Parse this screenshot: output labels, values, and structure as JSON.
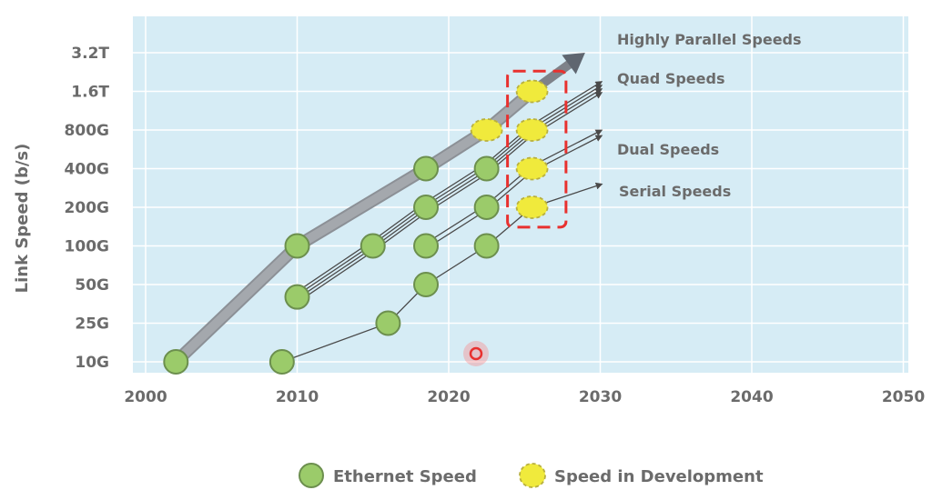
{
  "chart_data": {
    "type": "line",
    "ylabel": "Link Speed (b/s)",
    "xlabel": "",
    "xlim": [
      2000,
      2050
    ],
    "x_ticks": [
      2000,
      2010,
      2020,
      2030,
      2040,
      2050
    ],
    "y_scale": "log2",
    "y_ticks": [
      {
        "label": "10G",
        "value_gbps": 10
      },
      {
        "label": "25G",
        "value_gbps": 25
      },
      {
        "label": "50G",
        "value_gbps": 50
      },
      {
        "label": "100G",
        "value_gbps": 100
      },
      {
        "label": "200G",
        "value_gbps": 200
      },
      {
        "label": "400G",
        "value_gbps": 400
      },
      {
        "label": "800G",
        "value_gbps": 800
      },
      {
        "label": "1.6T",
        "value_gbps": 1600
      },
      {
        "label": "3.2T",
        "value_gbps": 3200
      }
    ],
    "grid": true,
    "series": [
      {
        "name": "Highly Parallel Speeds",
        "style": "thick-gray-arrow",
        "line": [
          [
            2002,
            10
          ],
          [
            2010,
            100
          ],
          [
            2018.5,
            400
          ],
          [
            2022.5,
            800
          ],
          [
            2025.5,
            1600
          ],
          [
            2029,
            3200
          ]
        ],
        "points": [
          {
            "x": 2002,
            "y": 10,
            "kind": "ethernet"
          },
          {
            "x": 2010,
            "y": 100,
            "kind": "ethernet"
          },
          {
            "x": 2018.5,
            "y": 400,
            "kind": "ethernet"
          },
          {
            "x": 2022.5,
            "y": 800,
            "kind": "development"
          },
          {
            "x": 2025.5,
            "y": 1600,
            "kind": "development"
          }
        ]
      },
      {
        "name": "Quad Speeds",
        "style": "multi-thin-arrow",
        "line": [
          [
            2010,
            40
          ],
          [
            2015,
            100
          ],
          [
            2018.5,
            200
          ],
          [
            2022.5,
            400
          ],
          [
            2025.5,
            800
          ],
          [
            2030,
            1700
          ]
        ],
        "points": [
          {
            "x": 2010,
            "y": 40,
            "kind": "ethernet"
          },
          {
            "x": 2015,
            "y": 100,
            "kind": "ethernet"
          }
        ]
      },
      {
        "name": "Dual Speeds",
        "style": "double-thin-arrow",
        "line": [
          [
            2018.5,
            100
          ],
          [
            2022.5,
            200
          ],
          [
            2025.5,
            400
          ],
          [
            2030,
            750
          ]
        ],
        "points": [
          {
            "x": 2018.5,
            "y": 200,
            "kind": "ethernet"
          },
          {
            "x": 2022.5,
            "y": 400,
            "kind": "ethernet"
          },
          {
            "x": 2018.5,
            "y": 100,
            "kind": "ethernet"
          },
          {
            "x": 2022.5,
            "y": 200,
            "kind": "ethernet"
          },
          {
            "x": 2025.5,
            "y": 800,
            "kind": "development"
          },
          {
            "x": 2025.5,
            "y": 400,
            "kind": "development"
          }
        ]
      },
      {
        "name": "Serial Speeds",
        "style": "thin-arrow",
        "line": [
          [
            2009,
            10
          ],
          [
            2016,
            25
          ],
          [
            2018.5,
            50
          ],
          [
            2022.5,
            100
          ],
          [
            2025.5,
            200
          ],
          [
            2030,
            300
          ]
        ],
        "points": [
          {
            "x": 2009,
            "y": 10,
            "kind": "ethernet"
          },
          {
            "x": 2016,
            "y": 25,
            "kind": "ethernet"
          },
          {
            "x": 2018.5,
            "y": 50,
            "kind": "ethernet"
          },
          {
            "x": 2022.5,
            "y": 100,
            "kind": "ethernet"
          },
          {
            "x": 2025.5,
            "y": 200,
            "kind": "development"
          }
        ]
      }
    ],
    "highlight_box": {
      "x_range": [
        2024,
        2027.5
      ],
      "y_range": [
        140,
        2300
      ],
      "color": "#e8312f",
      "style": "dashed"
    },
    "legend": {
      "placement": "bottom",
      "entries": [
        {
          "label": "Ethernet Speed",
          "kind": "ethernet"
        },
        {
          "label": "Speed in Development",
          "kind": "development"
        }
      ]
    },
    "colors": {
      "plot_bg": "#d6ecf5",
      "grid": "#ffffff",
      "ethernet_fill": "#9bcb6a",
      "ethernet_stroke": "#6c8f4e",
      "development_fill": "#f0ea3c",
      "development_stroke": "#b8b040",
      "highly_parallel": "#a4a8ad",
      "thin_line": "#4a4a4a",
      "highlight": "#e8312f"
    }
  }
}
